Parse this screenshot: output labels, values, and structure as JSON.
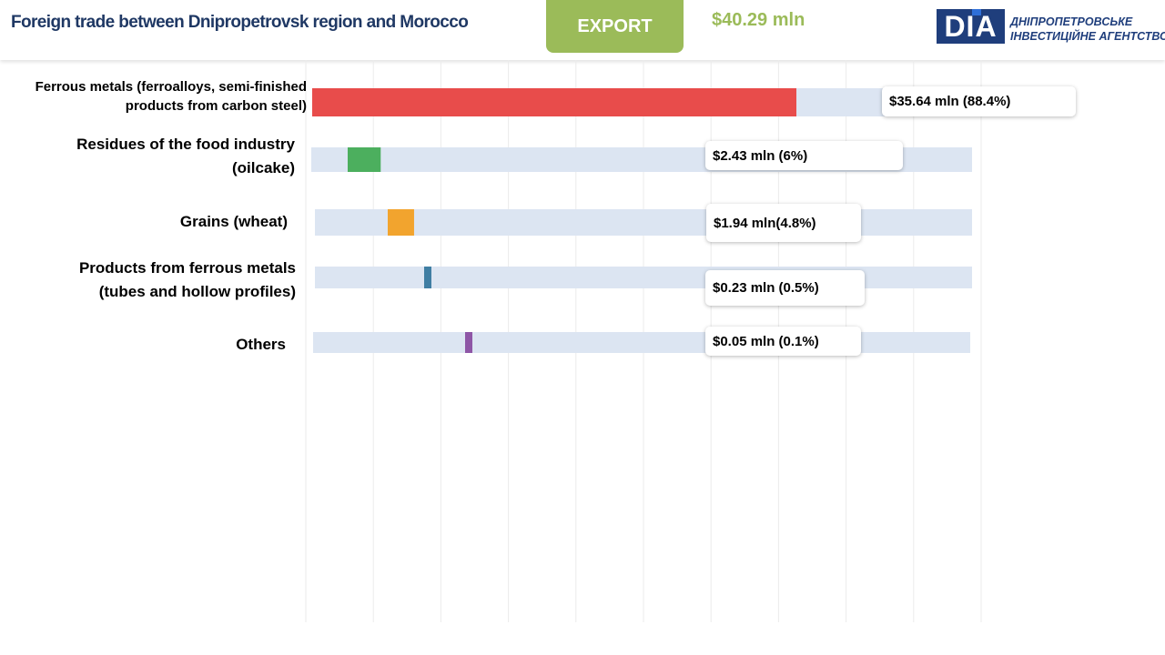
{
  "header": {
    "title": "Foreign trade between Dnipropetrovsk region and Morocco",
    "export_label": "EXPORT",
    "total": "$40.29 mln",
    "logo_mark": "DIA",
    "logo_line1": "ДНІПРОПЕТРОВСЬКЕ",
    "logo_line2": "ІНВЕСТИЦІЙНЕ АГЕНТСТВО"
  },
  "chart_data": {
    "type": "bar",
    "orientation": "horizontal",
    "categories": [
      "Ferrous metals (ferroalloys, semi-finished products from carbon steel)",
      "Residues of the food industry (oilcake)",
      "Grains (wheat)",
      "Products from ferrous metals (tubes and hollow profiles)",
      "Others"
    ],
    "values": [
      35.64,
      2.43,
      1.94,
      0.23,
      0.05
    ],
    "shares_percent": [
      88.4,
      6,
      4.8,
      0.5,
      0.1
    ],
    "unit": "$ mln",
    "colors": [
      "#e84c4b",
      "#4caf5e",
      "#f2a42e",
      "#3f7ea3",
      "#8e56a6"
    ],
    "track_color": "#dce5f2",
    "gridlines": true
  },
  "labels": {
    "cat0_line1": "Ferrous metals (ferroalloys, semi-finished",
    "cat0_line2": "products from carbon steel)",
    "cat1_line1": "Residues of the food industry",
    "cat1_line2": "(oilcake)",
    "cat2": "Grains  (wheat)",
    "cat3_line1": "Products  from  ferrous metals",
    "cat3_line2": "(tubes and hollow profiles)",
    "cat4": "Others"
  },
  "callouts": [
    "$35.64  mln (88.4%)",
    "$2.43  mln (6%)",
    "$1.94 mln(4.8%)",
    "$0.23 mln (0.5%)",
    "$0.05 mln (0.1%)"
  ]
}
